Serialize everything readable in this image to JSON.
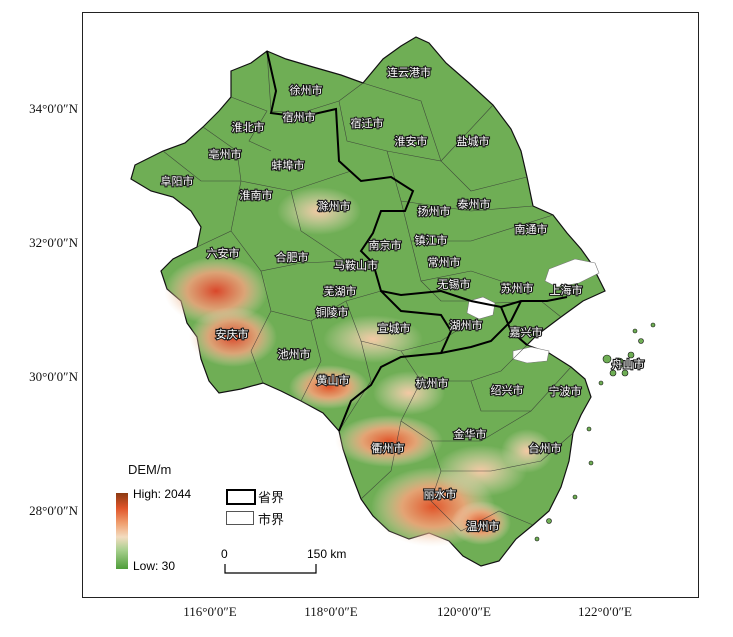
{
  "legend": {
    "dem_title": "DEM/m",
    "high_label": "High: 2044",
    "low_label": "Low: 30",
    "province_label": "省界",
    "city_label": "市界"
  },
  "scale_bar": {
    "start": "0",
    "end": "150 km"
  },
  "axes": {
    "y_ticks": [
      "34°0′0″N",
      "32°0′0″N",
      "30°0′0″N",
      "28°0′0″N"
    ],
    "x_ticks": [
      "116°0′0″E",
      "118°0′0″E",
      "120°0′0″E",
      "122°0′0″E"
    ]
  },
  "colors": {
    "low": "#4f9d3a",
    "mid": "#a8d08e",
    "upper": "#f3dcc0",
    "orange": "#e0552a",
    "high": "#8b3a12"
  },
  "cities": [
    "连云港市",
    "徐州市",
    "宿州市",
    "淮北市",
    "宿迁市",
    "淮安市",
    "盐城市",
    "亳州市",
    "蚌埠市",
    "阜阳市",
    "淮南市",
    "滁州市",
    "扬州市",
    "泰州市",
    "南通市",
    "南京市",
    "镇江市",
    "六安市",
    "合肥市",
    "马鞍山市",
    "常州市",
    "无锡市",
    "苏州市",
    "上海市",
    "芜湖市",
    "铜陵市",
    "宣城市",
    "湖州市",
    "嘉兴市",
    "安庆市",
    "池州市",
    "舟山市",
    "黄山市",
    "杭州市",
    "绍兴市",
    "宁波市",
    "金华市",
    "衢州市",
    "台州市",
    "丽水市",
    "温州市"
  ]
}
